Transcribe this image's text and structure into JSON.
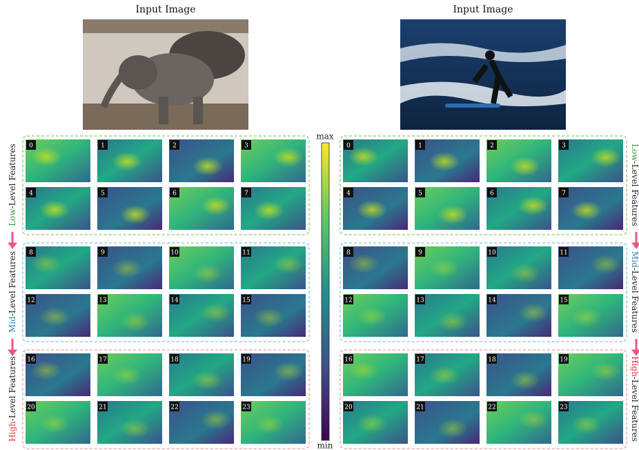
{
  "panels": [
    {
      "title": "Input Image",
      "groups": [
        {
          "label_key": "Low",
          "label_rest": "-Level Features",
          "tiles": [
            0,
            1,
            2,
            3,
            4,
            5,
            6,
            7
          ]
        },
        {
          "label_key": "Mid",
          "label_rest": "-Level Features",
          "tiles": [
            8,
            9,
            10,
            11,
            12,
            13,
            14,
            15
          ]
        },
        {
          "label_key": "High",
          "label_rest": "-Level Features",
          "tiles": [
            16,
            17,
            18,
            19,
            20,
            21,
            22,
            23
          ]
        }
      ]
    },
    {
      "title": "Input Image",
      "groups": [
        {
          "label_key": "Low",
          "label_rest": "-Level Features",
          "tiles": [
            0,
            1,
            2,
            3,
            4,
            5,
            6,
            7
          ]
        },
        {
          "label_key": "Mid",
          "label_rest": "-Level Features",
          "tiles": [
            8,
            9,
            10,
            11,
            12,
            13,
            14,
            15
          ]
        },
        {
          "label_key": "High",
          "label_rest": "-Level Features",
          "tiles": [
            16,
            17,
            18,
            19,
            20,
            21,
            22,
            23
          ]
        }
      ]
    }
  ],
  "colorbar": {
    "max": "max",
    "min": "min"
  }
}
